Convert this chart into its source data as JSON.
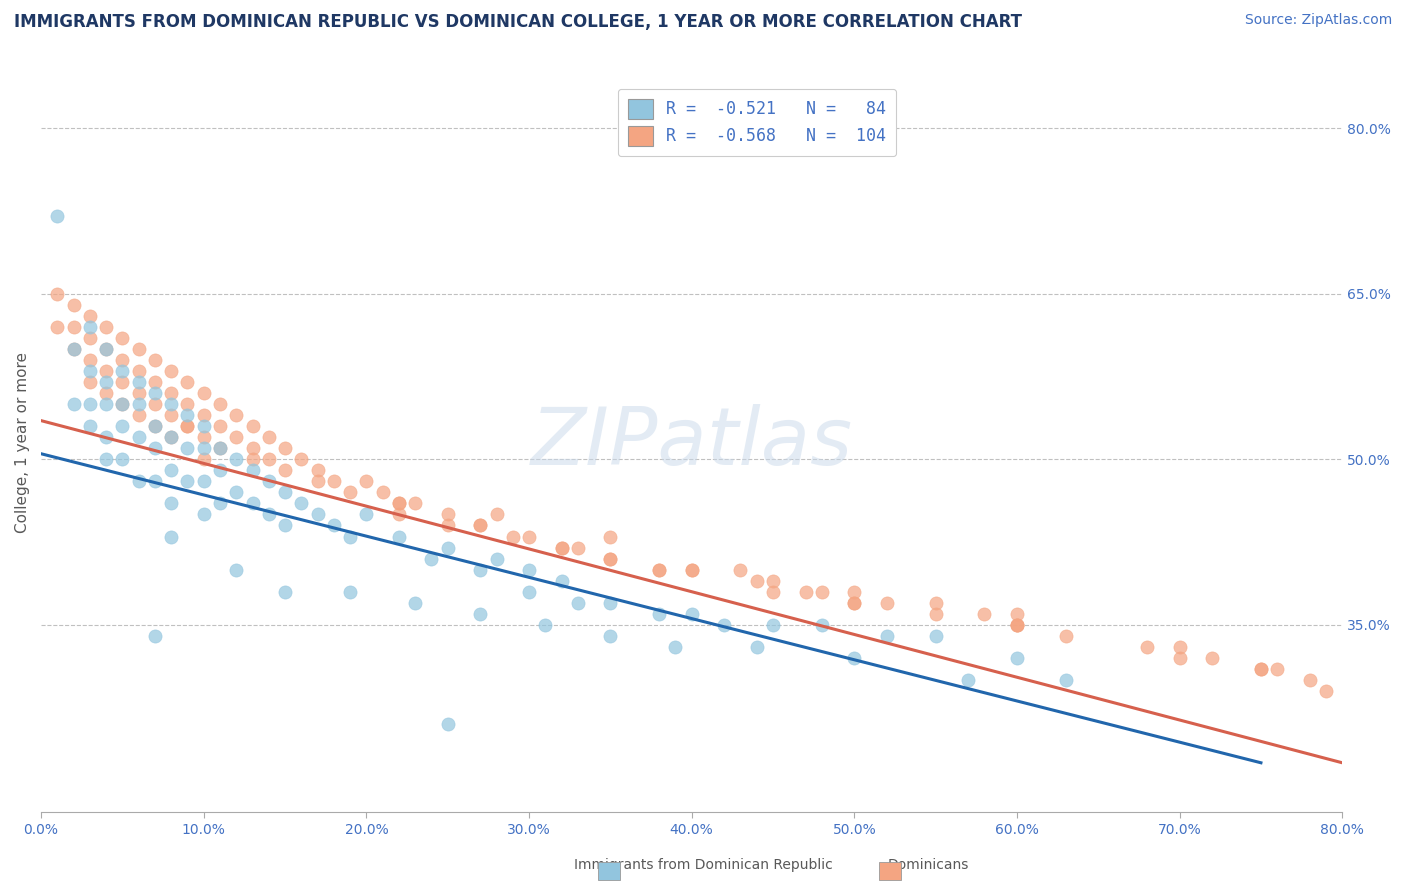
{
  "title": "IMMIGRANTS FROM DOMINICAN REPUBLIC VS DOMINICAN COLLEGE, 1 YEAR OR MORE CORRELATION CHART",
  "source_text": "Source: ZipAtlas.com",
  "ylabel": "College, 1 year or more",
  "watermark": "ZIPatlas",
  "xlim": [
    0.0,
    0.8
  ],
  "ylim": [
    0.18,
    0.85
  ],
  "x_tick_labels": [
    "0.0%",
    "10.0%",
    "20.0%",
    "30.0%",
    "40.0%",
    "50.0%",
    "60.0%",
    "70.0%",
    "80.0%"
  ],
  "x_tick_values": [
    0.0,
    0.1,
    0.2,
    0.3,
    0.4,
    0.5,
    0.6,
    0.7,
    0.8
  ],
  "right_y_ticks": [
    0.35,
    0.5,
    0.65,
    0.8
  ],
  "right_y_tick_labels": [
    "35.0%",
    "50.0%",
    "65.0%",
    "80.0%"
  ],
  "legend_line1": "R =  -0.521   N =   84",
  "legend_line2": "R =  -0.568   N =  104",
  "blue_color": "#92c5de",
  "blue_line_color": "#2166ac",
  "pink_color": "#f4a582",
  "pink_line_color": "#d6604d",
  "title_color": "#1f3864",
  "source_color": "#4472c4",
  "axis_label_color": "#595959",
  "right_tick_color": "#4472c4",
  "grid_color": "#c0c0c0",
  "background_color": "#ffffff",
  "blue_scatter": {
    "x": [
      0.01,
      0.02,
      0.02,
      0.03,
      0.03,
      0.03,
      0.03,
      0.04,
      0.04,
      0.04,
      0.04,
      0.04,
      0.05,
      0.05,
      0.05,
      0.05,
      0.06,
      0.06,
      0.06,
      0.06,
      0.07,
      0.07,
      0.07,
      0.07,
      0.08,
      0.08,
      0.08,
      0.08,
      0.09,
      0.09,
      0.09,
      0.1,
      0.1,
      0.1,
      0.1,
      0.11,
      0.11,
      0.11,
      0.12,
      0.12,
      0.13,
      0.13,
      0.14,
      0.14,
      0.15,
      0.15,
      0.16,
      0.17,
      0.18,
      0.19,
      0.2,
      0.22,
      0.24,
      0.25,
      0.27,
      0.28,
      0.3,
      0.3,
      0.32,
      0.33,
      0.35,
      0.38,
      0.4,
      0.42,
      0.45,
      0.48,
      0.52,
      0.55,
      0.6,
      0.63,
      0.08,
      0.12,
      0.15,
      0.19,
      0.23,
      0.27,
      0.31,
      0.35,
      0.39,
      0.44,
      0.5,
      0.57,
      0.07,
      0.25
    ],
    "y": [
      0.72,
      0.6,
      0.55,
      0.62,
      0.58,
      0.55,
      0.53,
      0.6,
      0.57,
      0.55,
      0.52,
      0.5,
      0.58,
      0.55,
      0.53,
      0.5,
      0.57,
      0.55,
      0.52,
      0.48,
      0.56,
      0.53,
      0.51,
      0.48,
      0.55,
      0.52,
      0.49,
      0.46,
      0.54,
      0.51,
      0.48,
      0.53,
      0.51,
      0.48,
      0.45,
      0.51,
      0.49,
      0.46,
      0.5,
      0.47,
      0.49,
      0.46,
      0.48,
      0.45,
      0.47,
      0.44,
      0.46,
      0.45,
      0.44,
      0.43,
      0.45,
      0.43,
      0.41,
      0.42,
      0.4,
      0.41,
      0.4,
      0.38,
      0.39,
      0.37,
      0.37,
      0.36,
      0.36,
      0.35,
      0.35,
      0.35,
      0.34,
      0.34,
      0.32,
      0.3,
      0.43,
      0.4,
      0.38,
      0.38,
      0.37,
      0.36,
      0.35,
      0.34,
      0.33,
      0.33,
      0.32,
      0.3,
      0.34,
      0.26
    ]
  },
  "pink_scatter": {
    "x": [
      0.01,
      0.01,
      0.02,
      0.02,
      0.02,
      0.03,
      0.03,
      0.03,
      0.03,
      0.04,
      0.04,
      0.04,
      0.04,
      0.05,
      0.05,
      0.05,
      0.05,
      0.06,
      0.06,
      0.06,
      0.06,
      0.07,
      0.07,
      0.07,
      0.07,
      0.08,
      0.08,
      0.08,
      0.08,
      0.09,
      0.09,
      0.09,
      0.1,
      0.1,
      0.1,
      0.1,
      0.11,
      0.11,
      0.11,
      0.12,
      0.12,
      0.13,
      0.13,
      0.14,
      0.14,
      0.15,
      0.15,
      0.16,
      0.17,
      0.18,
      0.19,
      0.2,
      0.21,
      0.22,
      0.23,
      0.25,
      0.27,
      0.29,
      0.32,
      0.35,
      0.38,
      0.4,
      0.44,
      0.47,
      0.5,
      0.55,
      0.6,
      0.35,
      0.28,
      0.09,
      0.13,
      0.17,
      0.22,
      0.27,
      0.32,
      0.38,
      0.45,
      0.52,
      0.6,
      0.68,
      0.75,
      0.3,
      0.4,
      0.5,
      0.6,
      0.7,
      0.79,
      0.22,
      0.45,
      0.63,
      0.75,
      0.35,
      0.5,
      0.7,
      0.25,
      0.55,
      0.72,
      0.43,
      0.6,
      0.78,
      0.33,
      0.58,
      0.76,
      0.48
    ],
    "y": [
      0.65,
      0.62,
      0.64,
      0.62,
      0.6,
      0.63,
      0.61,
      0.59,
      0.57,
      0.62,
      0.6,
      0.58,
      0.56,
      0.61,
      0.59,
      0.57,
      0.55,
      0.6,
      0.58,
      0.56,
      0.54,
      0.59,
      0.57,
      0.55,
      0.53,
      0.58,
      0.56,
      0.54,
      0.52,
      0.57,
      0.55,
      0.53,
      0.56,
      0.54,
      0.52,
      0.5,
      0.55,
      0.53,
      0.51,
      0.54,
      0.52,
      0.53,
      0.51,
      0.52,
      0.5,
      0.51,
      0.49,
      0.5,
      0.49,
      0.48,
      0.47,
      0.48,
      0.47,
      0.46,
      0.46,
      0.45,
      0.44,
      0.43,
      0.42,
      0.41,
      0.4,
      0.4,
      0.39,
      0.38,
      0.37,
      0.36,
      0.35,
      0.43,
      0.45,
      0.53,
      0.5,
      0.48,
      0.46,
      0.44,
      0.42,
      0.4,
      0.38,
      0.37,
      0.35,
      0.33,
      0.31,
      0.43,
      0.4,
      0.37,
      0.35,
      0.32,
      0.29,
      0.45,
      0.39,
      0.34,
      0.31,
      0.41,
      0.38,
      0.33,
      0.44,
      0.37,
      0.32,
      0.4,
      0.36,
      0.3,
      0.42,
      0.36,
      0.31,
      0.38
    ]
  },
  "blue_line": {
    "x_start": 0.0,
    "x_end": 0.75,
    "y_start": 0.505,
    "y_end": 0.225
  },
  "pink_line": {
    "x_start": 0.0,
    "x_end": 0.8,
    "y_start": 0.535,
    "y_end": 0.225
  },
  "title_fontsize": 12,
  "axis_label_fontsize": 11,
  "tick_fontsize": 10,
  "legend_fontsize": 12,
  "source_fontsize": 10
}
